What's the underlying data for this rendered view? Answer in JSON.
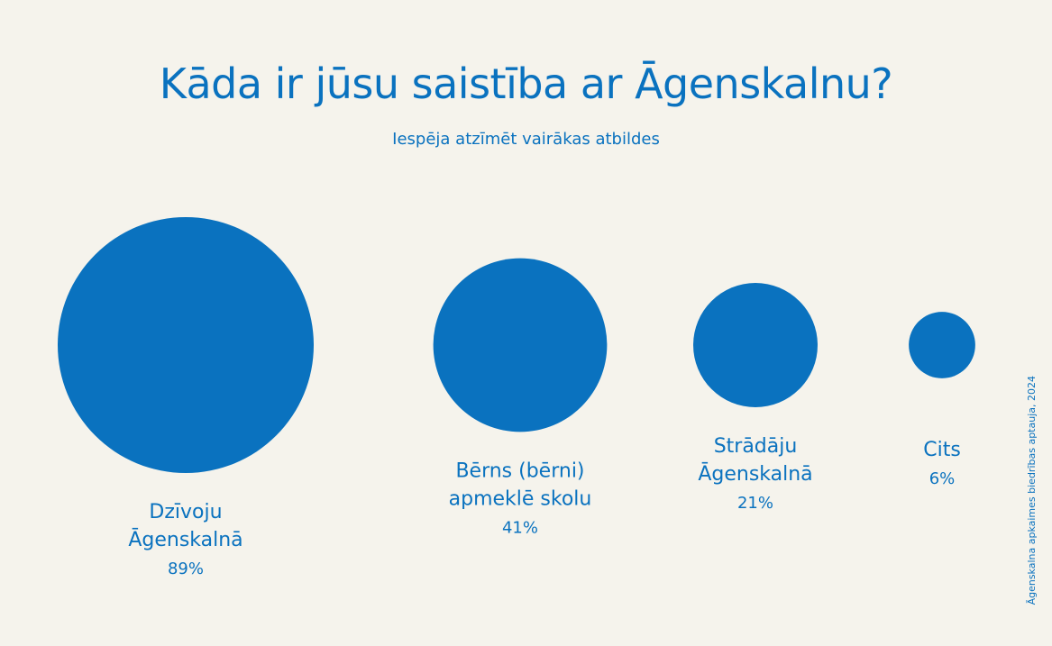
{
  "colors": {
    "background": "#f5f3ec",
    "accent": "#0a72bf"
  },
  "chart_data": {
    "type": "bubble",
    "title": "Kāda ir jūsu saistība ar Āgenskalnu?",
    "subtitle": "Iespēja atzīmēt vairākas atbildes",
    "unit": "%",
    "series": [
      {
        "label_lines": [
          "Dzīvoju",
          "Āgenskalnā"
        ],
        "value": 89,
        "value_label": "89%"
      },
      {
        "label_lines": [
          "Bērns (bērni)",
          "apmeklē skolu"
        ],
        "value": 41,
        "value_label": "41%"
      },
      {
        "label_lines": [
          "Strādāju",
          "Āgenskalnā"
        ],
        "value": 21,
        "value_label": "21%"
      },
      {
        "label_lines": [
          "Cits"
        ],
        "value": 6,
        "value_label": "6%"
      }
    ]
  },
  "credit": "Āgenskalna apkaimes biedrības aptauja, 2024"
}
